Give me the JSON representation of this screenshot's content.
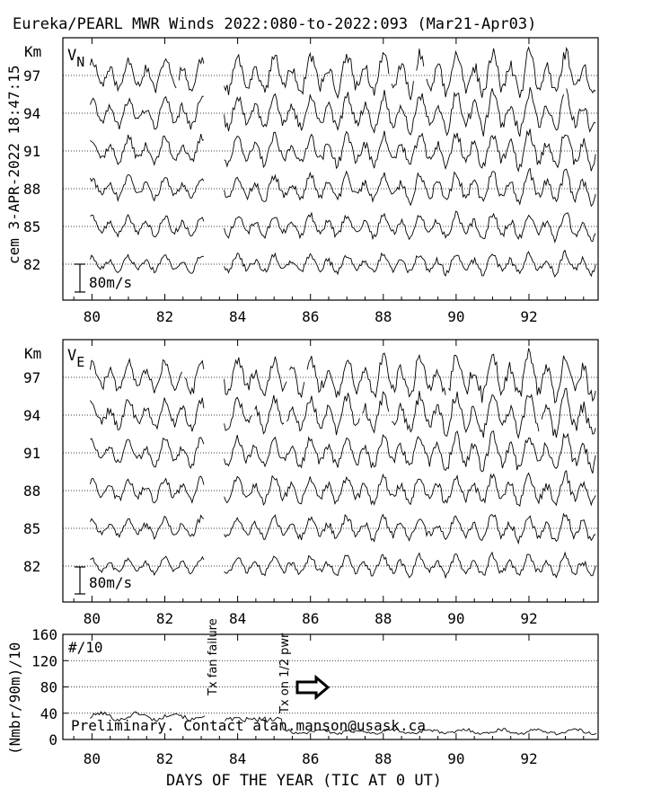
{
  "title": "Eureka/PEARL MWR Winds 2022:080-to-2022:093 (Mar21-Apr03)",
  "side_label": "cem 3-APR-2022 18:47:15",
  "xlabel": "DAYS OF THE YEAR (TIC AT 0 UT)",
  "annotations": {
    "tx_fan": "Tx fan failure",
    "tx_half": "Tx on 1/2 pwr",
    "preliminary": "Preliminary. Contact alan.manson@usask.ca"
  },
  "colors": {
    "line": "#000000",
    "grid": "#000000",
    "background": "#ffffff"
  },
  "chart_data": [
    {
      "type": "line",
      "panel": "VN",
      "component_label": "V",
      "component_sub": "N",
      "ylabel": "Km",
      "scale_label": "80m/s",
      "scale_ms": 80,
      "x_ticks": [
        80,
        82,
        84,
        86,
        88,
        90,
        92
      ],
      "xlim": [
        79.2,
        93.9
      ],
      "heights_km": [
        97,
        94,
        91,
        88,
        85,
        82
      ],
      "data_gaps": [
        [
          83.1,
          83.6
        ]
      ],
      "grid": "dotted at height levels"
    },
    {
      "type": "line",
      "panel": "VE",
      "component_label": "V",
      "component_sub": "E",
      "ylabel": "Km",
      "scale_label": "80m/s",
      "scale_ms": 80,
      "x_ticks": [
        80,
        82,
        84,
        86,
        88,
        90,
        92
      ],
      "xlim": [
        79.2,
        93.9
      ],
      "heights_km": [
        97,
        94,
        91,
        88,
        85,
        82
      ],
      "data_gaps": [
        [
          83.1,
          83.6
        ]
      ],
      "grid": "dotted at height levels"
    },
    {
      "type": "line",
      "panel": "counts",
      "ylabel": "(Nmbr/90m)/10",
      "series_label": "#/10",
      "y_ticks": [
        0,
        40,
        80,
        120,
        160
      ],
      "ylim": [
        0,
        160
      ],
      "x_ticks": [
        80,
        82,
        84,
        86,
        88,
        90,
        92
      ],
      "xlim": [
        79.2,
        93.9
      ],
      "grid": "dotted at 40, 80, 120"
    }
  ]
}
